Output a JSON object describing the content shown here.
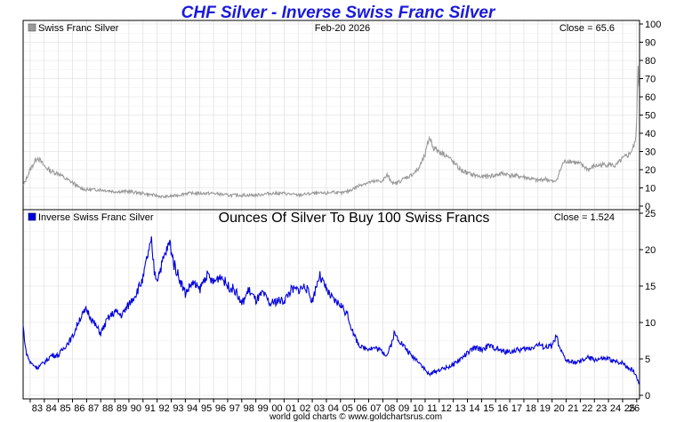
{
  "title": "CHF Silver - Inverse Swiss Franc Silver",
  "credit": "world gold charts © www.goldchartsrus.com",
  "colors": {
    "top_series": "#9a9a9a",
    "bottom_series": "#0000dd",
    "title": "#1a1adb",
    "grid": "#d9d9d9"
  },
  "chart_data": [
    {
      "type": "line",
      "legend": "Swiss Franc Silver",
      "date_label": "Feb-20  2026",
      "close_label": "Close = 65.6",
      "ylim": [
        0,
        100
      ],
      "yticks": [
        0,
        10,
        20,
        30,
        40,
        50,
        60,
        70,
        80,
        90,
        100
      ],
      "xlim": [
        1982.5,
        2026.2
      ],
      "series": [
        {
          "name": "Swiss Franc Silver",
          "x": [
            1982.5,
            1983.0,
            1983.5,
            1984.0,
            1984.5,
            1985.0,
            1985.5,
            1986.0,
            1986.5,
            1987.0,
            1987.5,
            1988.0,
            1989.0,
            1990.0,
            1991.0,
            1991.8,
            1992.5,
            1993.5,
            1994.0,
            1995.0,
            1996.0,
            1997.0,
            1998.0,
            1999.0,
            2000.0,
            2001.0,
            2002.0,
            2003.0,
            2004.0,
            2004.5,
            2005.0,
            2005.5,
            2006.0,
            2006.5,
            2007.0,
            2008.0,
            2008.3,
            2008.8,
            2009.5,
            2010.0,
            2010.5,
            2011.0,
            2011.3,
            2011.6,
            2012.0,
            2012.5,
            2013.0,
            2013.5,
            2014.0,
            2015.0,
            2016.0,
            2016.5,
            2017.0,
            2018.0,
            2019.0,
            2019.5,
            2020.2,
            2020.4,
            2020.8,
            2021.2,
            2022.0,
            2022.6,
            2023.0,
            2024.0,
            2024.5,
            2025.0,
            2025.4,
            2025.7,
            2025.9,
            2026.0,
            2026.1,
            2026.15
          ],
          "y": [
            11,
            20,
            27,
            22,
            19,
            18,
            15,
            13,
            10,
            9,
            9,
            9,
            8,
            8,
            7,
            6,
            5,
            6,
            7,
            7,
            7,
            6,
            6,
            6,
            7,
            7,
            6,
            7,
            7,
            8,
            7,
            8,
            10,
            12,
            13,
            14,
            17,
            12,
            15,
            17,
            20,
            28,
            38,
            32,
            30,
            28,
            24,
            20,
            18,
            16,
            17,
            18,
            17,
            16,
            14,
            15,
            13,
            16,
            24,
            25,
            23,
            20,
            22,
            23,
            22,
            26,
            28,
            31,
            35,
            47,
            78,
            65.6
          ]
        }
      ]
    },
    {
      "type": "line",
      "legend": "Inverse Swiss Franc Silver",
      "subtitle": "Ounces Of Silver To Buy 100 Swiss Francs",
      "close_label": "Close = 1.524",
      "ylim": [
        0,
        25
      ],
      "yticks": [
        0,
        5,
        10,
        15,
        20,
        25
      ],
      "xlim": [
        1982.5,
        2026.2
      ],
      "categories": [
        "83",
        "84",
        "85",
        "86",
        "87",
        "88",
        "89",
        "90",
        "91",
        "92",
        "93",
        "94",
        "95",
        "96",
        "97",
        "98",
        "99",
        "00",
        "01",
        "02",
        "03",
        "04",
        "05",
        "06",
        "07",
        "08",
        "09",
        "10",
        "11",
        "12",
        "13",
        "14",
        "15",
        "16",
        "17",
        "18",
        "19",
        "20",
        "21",
        "22",
        "23",
        "24",
        "25",
        "26"
      ],
      "series": [
        {
          "name": "Inverse Swiss Franc Silver",
          "x": [
            1982.5,
            1982.7,
            1983.0,
            1983.5,
            1984.0,
            1984.5,
            1985.0,
            1985.5,
            1986.0,
            1986.5,
            1987.0,
            1987.5,
            1988.0,
            1988.5,
            1989.0,
            1989.5,
            1990.0,
            1990.5,
            1991.0,
            1991.3,
            1991.6,
            1991.8,
            1992.0,
            1992.5,
            1992.9,
            1993.2,
            1993.6,
            1994.0,
            1994.5,
            1995.0,
            1995.5,
            1996.0,
            1996.5,
            1997.0,
            1997.5,
            1998.0,
            1998.5,
            1999.0,
            1999.5,
            2000.0,
            2000.5,
            2001.0,
            2001.5,
            2002.0,
            2002.5,
            2003.0,
            2003.5,
            2004.0,
            2004.5,
            2005.0,
            2005.5,
            2006.0,
            2006.5,
            2007.0,
            2007.5,
            2008.0,
            2008.3,
            2008.6,
            2008.8,
            2009.2,
            2009.6,
            2010.0,
            2010.5,
            2011.0,
            2011.3,
            2011.6,
            2012.0,
            2012.5,
            2013.0,
            2013.5,
            2014.0,
            2014.5,
            2015.0,
            2015.5,
            2016.0,
            2016.5,
            2017.0,
            2017.5,
            2018.0,
            2018.5,
            2019.0,
            2019.5,
            2020.0,
            2020.2,
            2020.3,
            2020.5,
            2021.0,
            2021.5,
            2022.0,
            2022.5,
            2023.0,
            2023.5,
            2024.0,
            2024.5,
            2025.0,
            2025.4,
            2025.7,
            2026.0,
            2026.15
          ],
          "y": [
            9.5,
            6,
            4.5,
            3.8,
            4.5,
            5.5,
            5.5,
            6.8,
            8,
            10.5,
            11.8,
            10,
            8.5,
            10.5,
            11.5,
            11,
            12.5,
            14,
            16,
            19,
            21,
            17,
            16,
            19,
            21,
            18,
            16,
            14,
            15.5,
            14.5,
            16.5,
            15.5,
            16.5,
            15,
            14.5,
            12.5,
            14.5,
            13,
            14,
            12.5,
            13,
            13,
            14.5,
            14.5,
            15,
            13,
            16.5,
            14.5,
            13,
            12.5,
            11,
            8,
            6.5,
            6.5,
            6.5,
            6,
            5.5,
            7,
            8.5,
            7.5,
            6.5,
            5.5,
            4.8,
            3.5,
            2.8,
            3.2,
            3.5,
            3.8,
            4.2,
            5,
            5.8,
            6.5,
            6.3,
            6.8,
            6.5,
            6,
            6,
            6.2,
            6.3,
            6.5,
            7,
            6.6,
            6.8,
            7.5,
            8.5,
            6.5,
            4.8,
            4.5,
            4.6,
            5.2,
            4.9,
            5,
            5,
            4.6,
            4.5,
            3.8,
            3.5,
            2.6,
            1.524
          ]
        }
      ]
    }
  ]
}
